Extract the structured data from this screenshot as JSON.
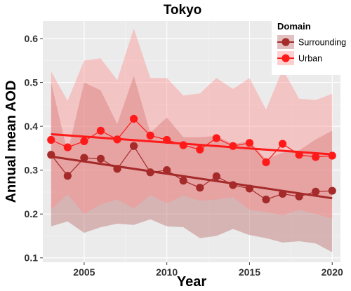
{
  "chart_data": {
    "type": "line",
    "title": "Tokyo",
    "xlabel": "Year",
    "ylabel": "Annual mean AOD",
    "xlim": [
      2002.5,
      2020.5
    ],
    "ylim": [
      0.09,
      0.64
    ],
    "x_ticks": [
      2005,
      2010,
      2015,
      2020
    ],
    "y_ticks": [
      0.1,
      0.2,
      0.3,
      0.4,
      0.5,
      0.6
    ],
    "grid": true,
    "legend": {
      "title": "Domain",
      "placement": "top-right"
    },
    "x": [
      2003,
      2004,
      2005,
      2006,
      2007,
      2008,
      2009,
      2010,
      2011,
      2012,
      2013,
      2014,
      2015,
      2016,
      2017,
      2018,
      2019,
      2020
    ],
    "series": [
      {
        "name": "Surrounding",
        "color": "#a52a2a",
        "ribbon_color": "#b4615e",
        "values": [
          0.335,
          0.287,
          0.328,
          0.326,
          0.303,
          0.355,
          0.295,
          0.3,
          0.276,
          0.26,
          0.286,
          0.266,
          0.258,
          0.233,
          0.246,
          0.24,
          0.251,
          0.253
        ],
        "lower": [
          0.172,
          0.183,
          0.157,
          0.17,
          0.178,
          0.175,
          0.188,
          0.172,
          0.17,
          0.145,
          0.15,
          0.166,
          0.152,
          0.145,
          0.135,
          0.138,
          0.133,
          0.113
        ],
        "upper": [
          0.5,
          0.34,
          0.5,
          0.482,
          0.405,
          0.515,
          0.385,
          0.42,
          0.375,
          0.375,
          0.378,
          0.36,
          0.366,
          0.325,
          0.34,
          0.345,
          0.37,
          0.39
        ],
        "trend": [
          0.331,
          0.236
        ]
      },
      {
        "name": "Urban",
        "color": "#ff1a1a",
        "ribbon_color": "#ff8a8a",
        "values": [
          0.369,
          0.352,
          0.366,
          0.39,
          0.37,
          0.417,
          0.379,
          0.369,
          0.357,
          0.347,
          0.373,
          0.355,
          0.362,
          0.318,
          0.36,
          0.335,
          0.33,
          0.333
        ],
        "lower": [
          0.21,
          0.245,
          0.2,
          0.222,
          0.233,
          0.213,
          0.243,
          0.225,
          0.242,
          0.23,
          0.233,
          0.238,
          0.21,
          0.205,
          0.197,
          0.21,
          0.2,
          0.19
        ],
        "upper": [
          0.525,
          0.458,
          0.55,
          0.555,
          0.505,
          0.623,
          0.51,
          0.51,
          0.47,
          0.475,
          0.51,
          0.485,
          0.51,
          0.438,
          0.53,
          0.463,
          0.46,
          0.474
        ],
        "trend": [
          0.382,
          0.336
        ]
      }
    ]
  }
}
